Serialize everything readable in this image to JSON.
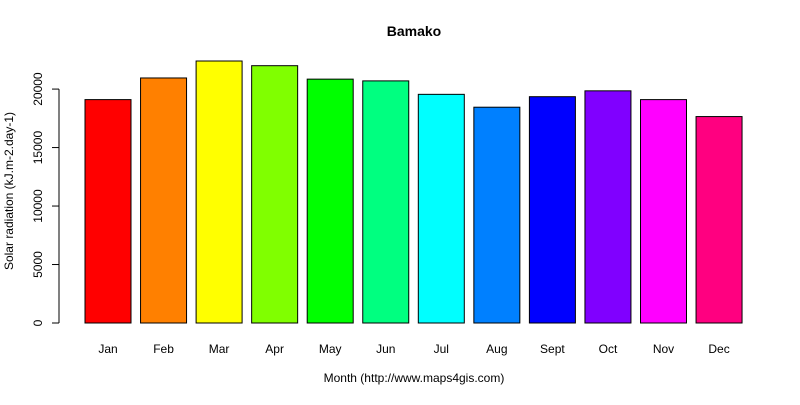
{
  "chart_data": {
    "type": "bar",
    "title": "Bamako",
    "xlabel": "Month (http://www.maps4gis.com)",
    "ylabel": "Solar radiation (kJ.m-2.day-1)",
    "categories": [
      "Jan",
      "Feb",
      "Mar",
      "Apr",
      "May",
      "Jun",
      "Jul",
      "Aug",
      "Sept",
      "Oct",
      "Nov",
      "Dec"
    ],
    "values": [
      19100,
      20950,
      22400,
      22000,
      20850,
      20700,
      19550,
      18450,
      19350,
      19850,
      19100,
      17650
    ],
    "colors": [
      "#FF0000",
      "#FF8000",
      "#FFFF00",
      "#80FF00",
      "#00FF00",
      "#00FF80",
      "#00FFFF",
      "#0080FF",
      "#0000FF",
      "#8000FF",
      "#FF00FF",
      "#FF0080"
    ],
    "ylim": [
      0,
      22400
    ],
    "yticks": [
      0,
      5000,
      10000,
      15000,
      20000
    ],
    "grid": false,
    "legend": "none"
  }
}
